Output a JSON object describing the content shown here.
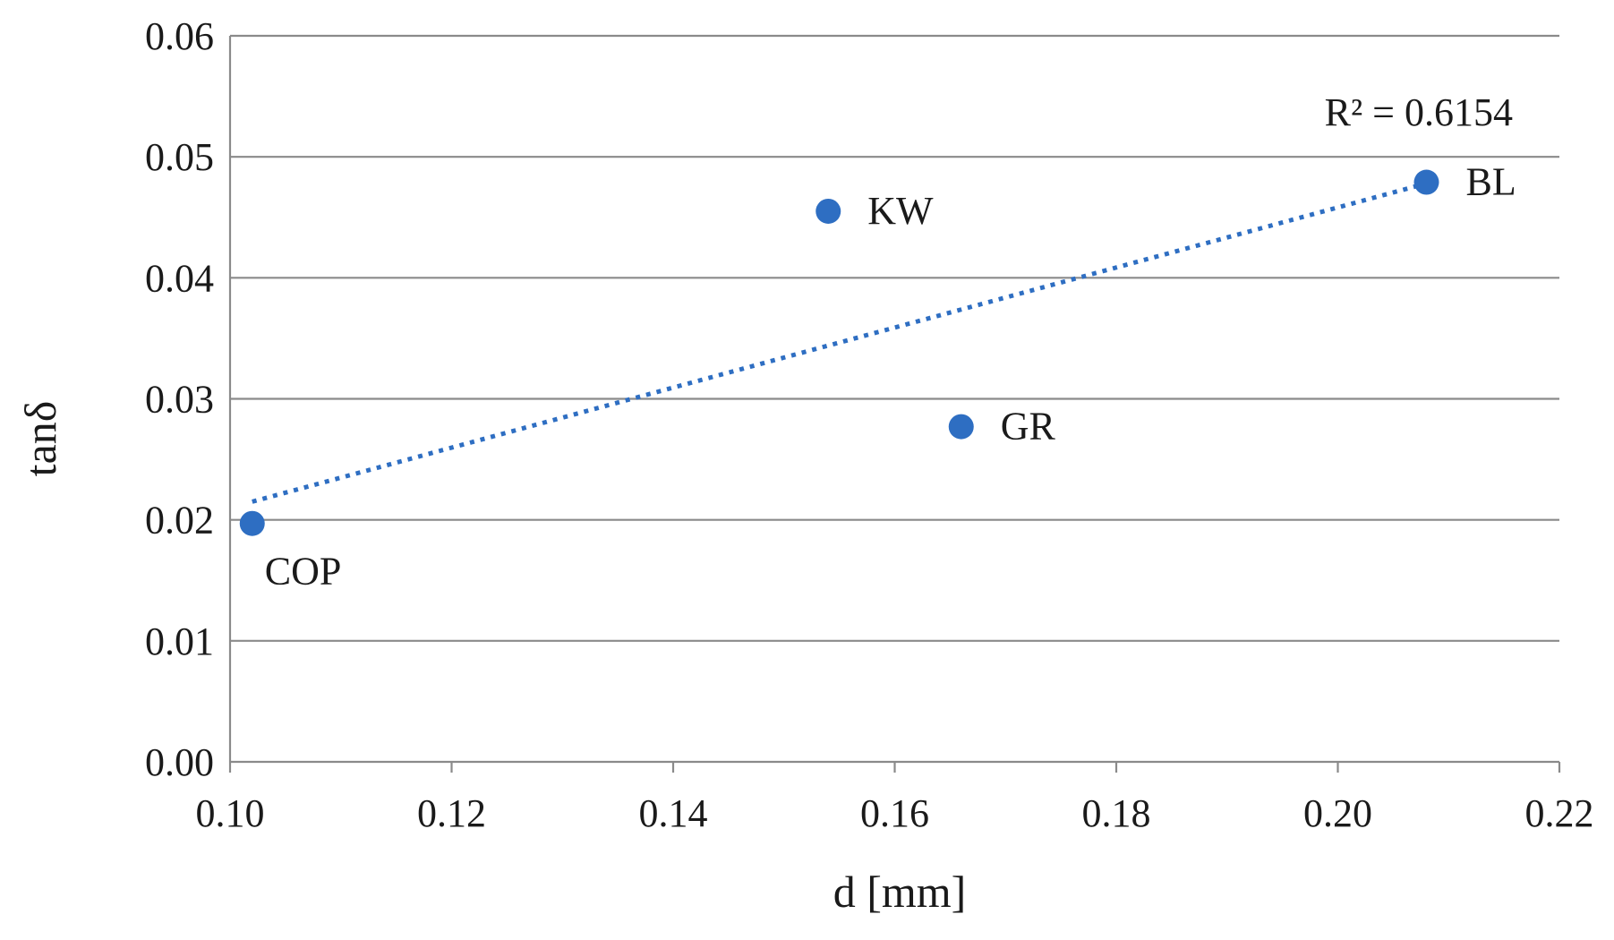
{
  "chart_data": {
    "type": "scatter",
    "title": "",
    "xlabel": "d [mm]",
    "ylabel": "tanδ",
    "xlim": [
      0.1,
      0.22
    ],
    "ylim": [
      0.0,
      0.06
    ],
    "x_ticks": [
      "0.10",
      "0.12",
      "0.14",
      "0.16",
      "0.18",
      "0.20",
      "0.22"
    ],
    "y_ticks": [
      "0.00",
      "0.01",
      "0.02",
      "0.03",
      "0.04",
      "0.05",
      "0.06"
    ],
    "grid": true,
    "colors": {
      "point": "#2e6ec2",
      "trendline": "#2e6ec2",
      "grid": "#8a8a8a",
      "axis": "#8a8a8a"
    },
    "points": [
      {
        "label": "COP",
        "x": 0.102,
        "y": 0.0197,
        "label_pos": "below-right"
      },
      {
        "label": "KW",
        "x": 0.154,
        "y": 0.0455,
        "label_pos": "right"
      },
      {
        "label": "GR",
        "x": 0.166,
        "y": 0.0277,
        "label_pos": "right"
      },
      {
        "label": "BL",
        "x": 0.208,
        "y": 0.0479,
        "label_pos": "right"
      }
    ],
    "trendline": {
      "type": "linear",
      "style": "dotted",
      "x_start": 0.102,
      "y_start": 0.0215,
      "x_end": 0.208,
      "y_end": 0.0478,
      "r2_label": "R² = 0.6154"
    }
  }
}
